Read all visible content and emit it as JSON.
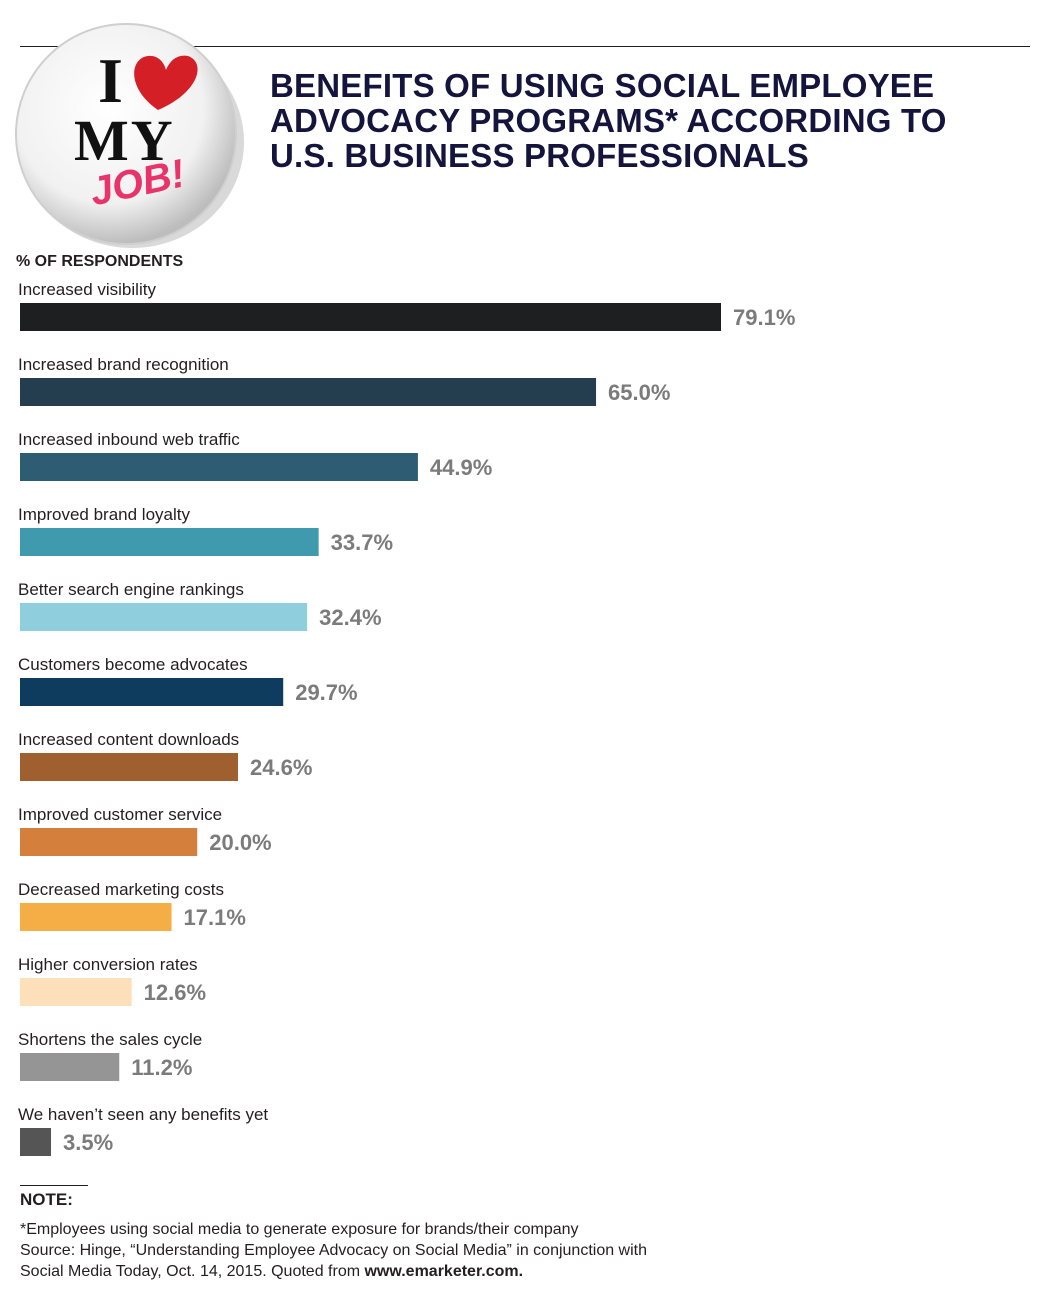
{
  "header": {
    "title_lines": [
      "BENEFITS OF USING SOCIAL EMPLOYEE",
      "ADVOCACY PROGRAMS* ACCORDING TO",
      "U.S. BUSINESS PROFESSIONALS"
    ]
  },
  "badge": {
    "text_i": "I",
    "text_my": "MY",
    "text_job": "JOB!",
    "icon": "heart-icon"
  },
  "chart_data": {
    "type": "bar",
    "orientation": "horizontal",
    "title": "BENEFITS OF USING SOCIAL EMPLOYEE ADVOCACY PROGRAMS* ACCORDING TO U.S. BUSINESS PROFESSIONALS",
    "unit_label": "% OF RESPONDENTS",
    "xlim": [
      0,
      100
    ],
    "grid": false,
    "legend": "none",
    "categories": [
      "Increased visibility",
      "Increased brand recognition",
      "Increased inbound web traffic",
      "Improved brand loyalty",
      "Better search engine rankings",
      "Customers become advocates",
      "Increased content downloads",
      "Improved customer service",
      "Decreased marketing costs",
      "Higher conversion rates",
      "Shortens the sales cycle",
      "We haven’t seen any benefits yet"
    ],
    "values": [
      79.1,
      65.0,
      44.9,
      33.7,
      32.4,
      29.7,
      24.6,
      20.0,
      17.1,
      12.6,
      11.2,
      3.5
    ],
    "value_labels": [
      "79.1%",
      "65.0%",
      "44.9%",
      "33.7%",
      "32.4%",
      "29.7%",
      "24.6%",
      "20.0%",
      "17.1%",
      "12.6%",
      "11.2%",
      "3.5%"
    ],
    "colors": [
      "#1d1f20",
      "#243e4f",
      "#2e5c72",
      "#3f9aad",
      "#8fcfdd",
      "#0d3c5f",
      "#a05f2f",
      "#d4803c",
      "#f5ae45",
      "#fde0b9",
      "#959595",
      "#555555"
    ]
  },
  "note": {
    "heading": "NOTE:",
    "line1": "*Employees using social media to generate exposure for brands/their company",
    "line2": "Source: Hinge, “Understanding Employee Advocacy on Social Media” in conjunction with",
    "line3_prefix": "Social Media Today, Oct. 14, 2015. Quoted from ",
    "line3_link": "www.emarketer.com."
  }
}
